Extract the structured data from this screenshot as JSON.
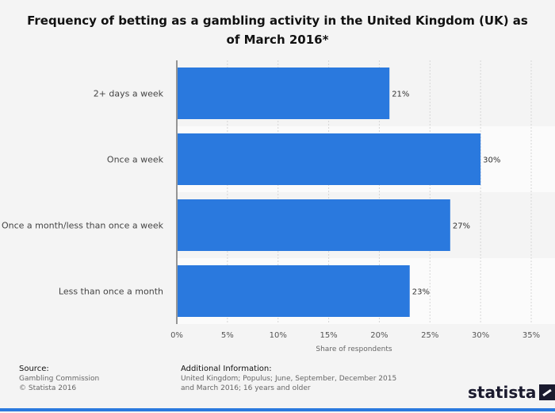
{
  "chart_data": {
    "type": "bar",
    "orientation": "horizontal",
    "title": "Frequency of betting as a gambling activity in the United Kingdom (UK) as of March 2016*",
    "categories": [
      "2+ days a week",
      "Once a week",
      "Once a month/less than once a week",
      "Less than once a month"
    ],
    "values": [
      21,
      30,
      27,
      23
    ],
    "value_labels": [
      "21%",
      "30%",
      "27%",
      "23%"
    ],
    "xlabel": "Share of respondents",
    "ylabel": "",
    "xlim": [
      0,
      35
    ],
    "x_ticks": [
      "0%",
      "5%",
      "10%",
      "15%",
      "20%",
      "25%",
      "30%",
      "35%"
    ],
    "bar_color": "#2a79de",
    "grid": true,
    "legend": "none"
  },
  "footer": {
    "source_header": "Source:",
    "source_lines": [
      "Gambling Commission",
      "© Statista 2016"
    ],
    "info_header": "Additional Information:",
    "info_text": "United Kingdom; Populus; June, September, December 2015 and March 2016; 16 years and older"
  },
  "brand": {
    "name": "statista",
    "icon": "statista-logo-icon"
  }
}
